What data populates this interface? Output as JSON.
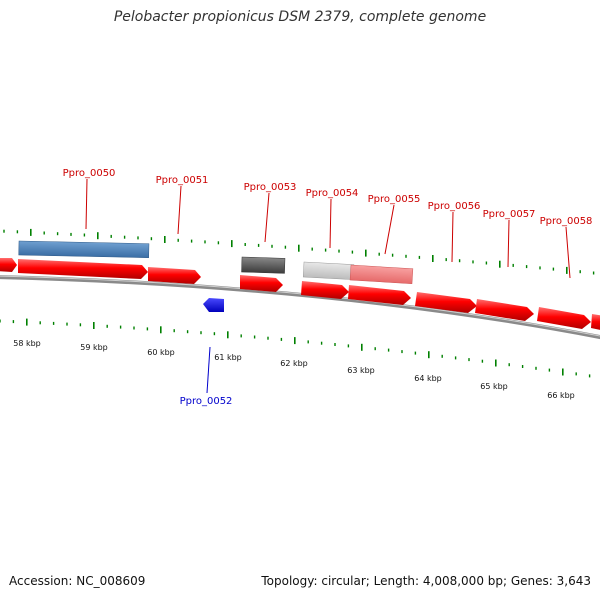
{
  "title": "Pelobacter propionicus DSM 2379, complete genome",
  "footer": {
    "accession": "Accession: NC_008609",
    "summary": "Topology: circular; Length: 4,008,000 bp; Genes: 3,643"
  },
  "colors": {
    "forward_gene": "#ff0000",
    "reverse_gene": "#0000ee",
    "label_forward": "#cc0000",
    "label_reverse": "#0000cc",
    "tick": "#008000",
    "backbone": "#808080",
    "feature_blue": "#4682b4",
    "feature_dark": "#555555",
    "feature_light": "#cccccc",
    "feature_pink": "#f08080"
  },
  "kbp_labels": [
    "58 kbp",
    "59 kbp",
    "60 kbp",
    "61 kbp",
    "62 kbp",
    "63 kbp",
    "64 kbp",
    "65 kbp",
    "66 kbp"
  ],
  "gene_labels": [
    {
      "id": "Ppro_0050",
      "strand": "forward"
    },
    {
      "id": "Ppro_0051",
      "strand": "forward"
    },
    {
      "id": "Ppro_0053",
      "strand": "forward"
    },
    {
      "id": "Ppro_0054",
      "strand": "forward"
    },
    {
      "id": "Ppro_0055",
      "strand": "forward"
    },
    {
      "id": "Ppro_0056",
      "strand": "forward"
    },
    {
      "id": "Ppro_0057",
      "strand": "forward"
    },
    {
      "id": "Ppro_0058",
      "strand": "forward"
    },
    {
      "id": "Ppro_0052",
      "strand": "reverse"
    }
  ]
}
